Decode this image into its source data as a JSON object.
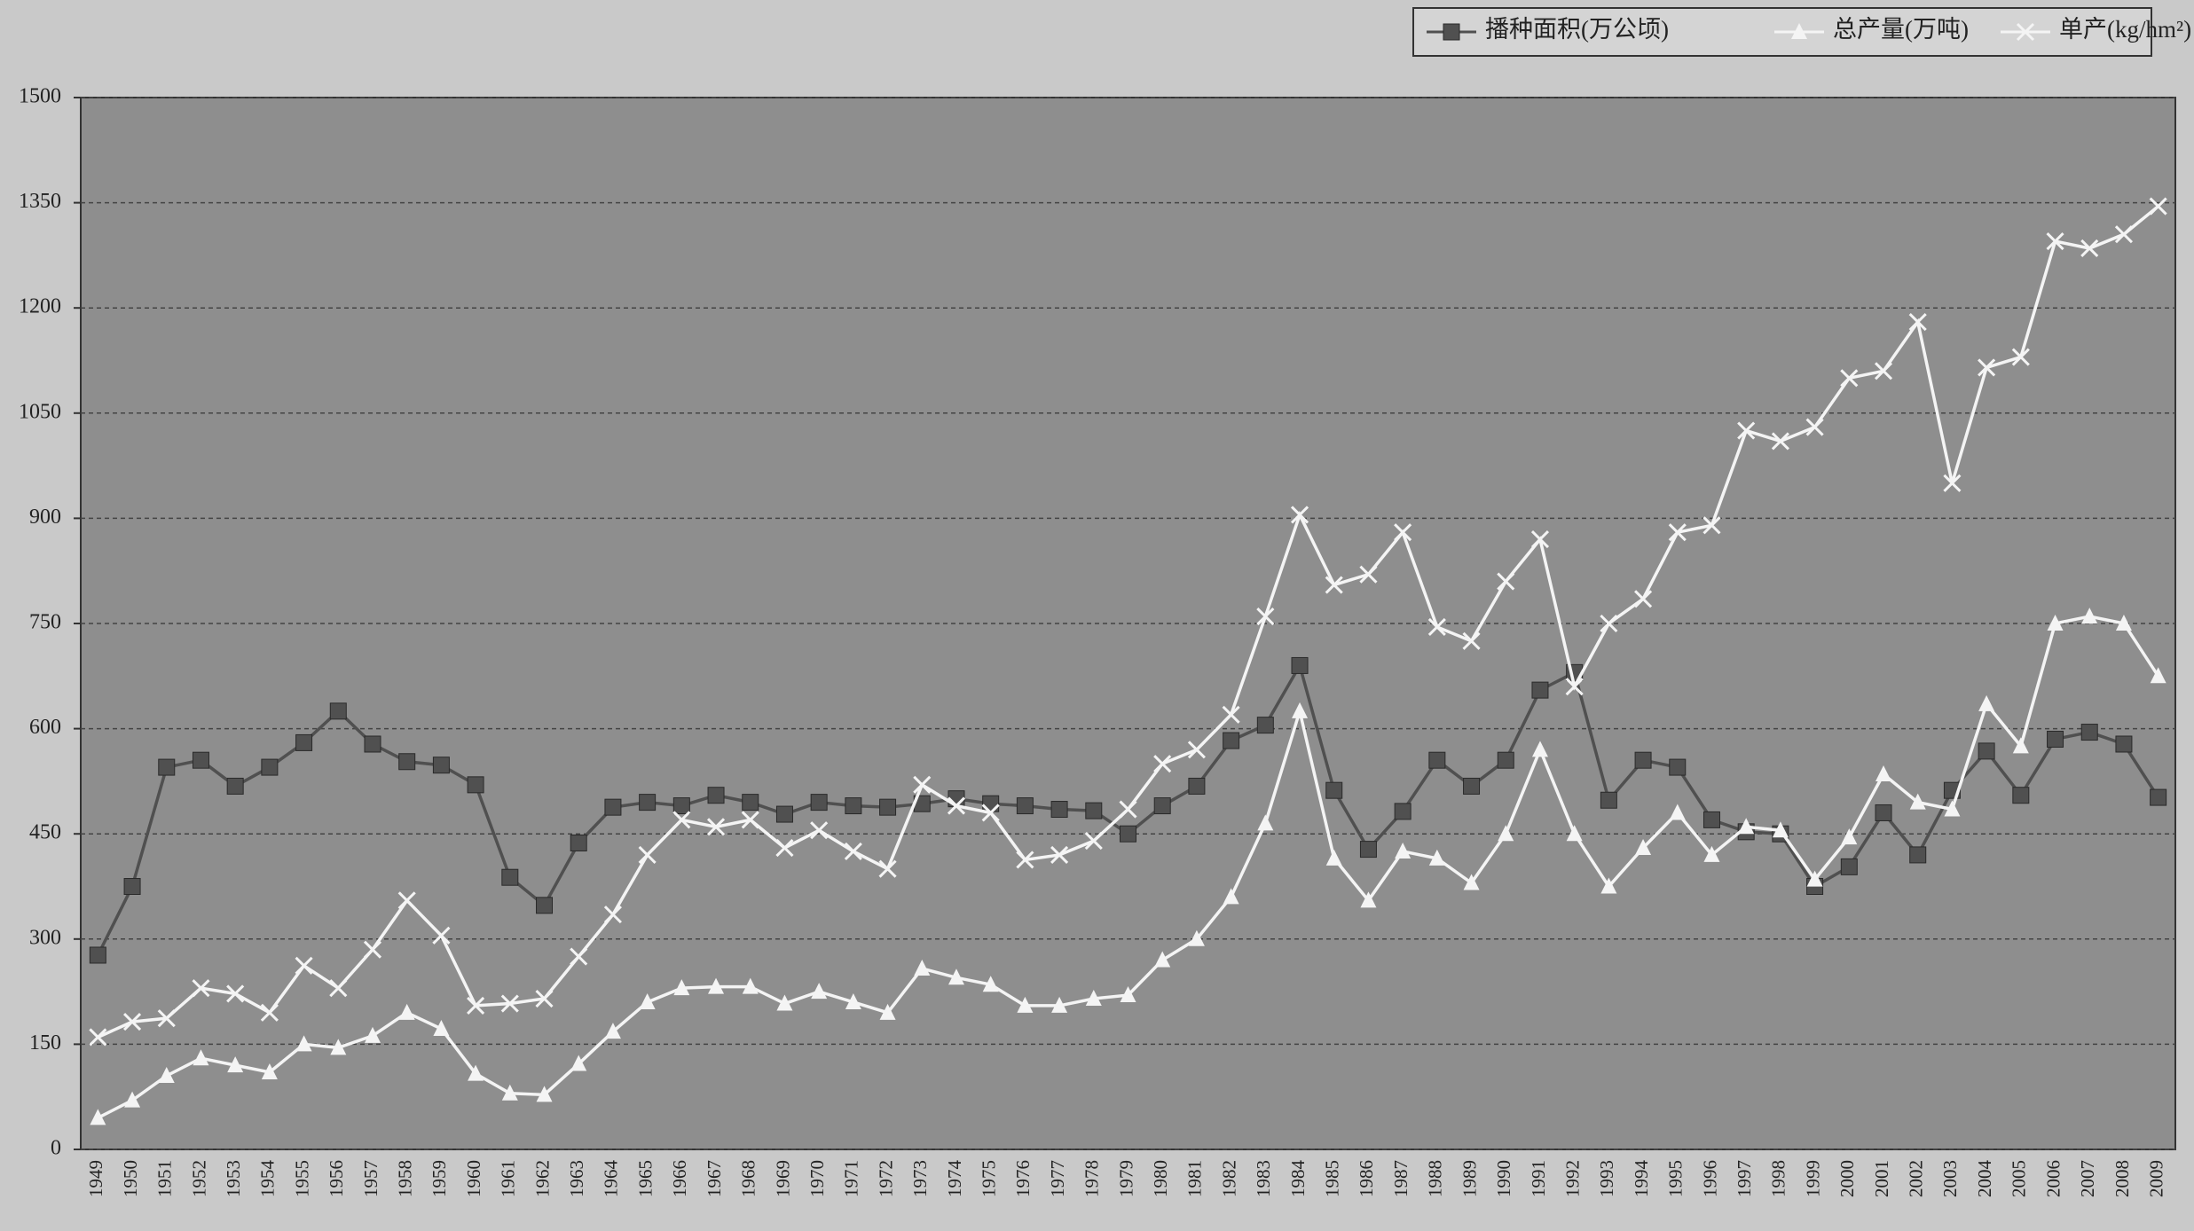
{
  "chart_data": {
    "type": "line",
    "categories": [
      "1949",
      "1950",
      "1951",
      "1952",
      "1953",
      "1954",
      "1955",
      "1956",
      "1957",
      "1958",
      "1959",
      "1960",
      "1961",
      "1962",
      "1963",
      "1964",
      "1965",
      "1966",
      "1967",
      "1968",
      "1969",
      "1970",
      "1971",
      "1972",
      "1973",
      "1974",
      "1975",
      "1976",
      "1977",
      "1978",
      "1979",
      "1980",
      "1981",
      "1982",
      "1983",
      "1984",
      "1985",
      "1986",
      "1987",
      "1988",
      "1989",
      "1990",
      "1991",
      "1992",
      "1993",
      "1994",
      "1995",
      "1996",
      "1997",
      "1998",
      "1999",
      "2000",
      "2001",
      "2002",
      "2003",
      "2004",
      "2005",
      "2006",
      "2007",
      "2008",
      "2009"
    ],
    "series": [
      {
        "name": "播种面积(万公顷)",
        "color": "#505050",
        "marker": "square",
        "values": [
          277,
          375,
          545,
          555,
          518,
          545,
          580,
          625,
          578,
          553,
          548,
          520,
          388,
          348,
          437,
          488,
          495,
          490,
          505,
          495,
          478,
          495,
          490,
          488,
          493,
          500,
          493,
          490,
          485,
          483,
          450,
          490,
          518,
          583,
          605,
          690,
          512,
          428,
          482,
          555,
          518,
          555,
          655,
          680,
          498,
          555,
          545,
          470,
          453,
          450,
          375,
          403,
          480,
          420,
          512,
          568,
          505,
          585,
          595,
          578,
          502
        ]
      },
      {
        "name": "总产量(万吨)",
        "color": "#f4f4f4",
        "marker": "triangle",
        "values": [
          45,
          70,
          105,
          130,
          120,
          110,
          150,
          145,
          162,
          195,
          172,
          108,
          80,
          78,
          122,
          168,
          210,
          230,
          232,
          232,
          208,
          225,
          210,
          195,
          258,
          245,
          235,
          205,
          205,
          215,
          220,
          270,
          300,
          360,
          465,
          625,
          415,
          355,
          425,
          415,
          380,
          450,
          570,
          450,
          375,
          430,
          480,
          420,
          460,
          455,
          385,
          445,
          535,
          495,
          485,
          635,
          575,
          750,
          760,
          750,
          675
        ]
      },
      {
        "name": "单产(kg/hm²)",
        "color": "#f4f4f4",
        "marker": "x",
        "values": [
          160,
          182,
          187,
          230,
          222,
          195,
          262,
          230,
          285,
          355,
          305,
          205,
          208,
          215,
          275,
          335,
          420,
          470,
          460,
          470,
          430,
          455,
          425,
          400,
          520,
          490,
          480,
          413,
          420,
          440,
          485,
          550,
          570,
          620,
          760,
          905,
          805,
          820,
          880,
          745,
          725,
          810,
          870,
          660,
          750,
          785,
          880,
          890,
          1025,
          1010,
          1030,
          1100,
          1110,
          1180,
          950,
          1115,
          1130,
          1295,
          1285,
          1305,
          1345
        ]
      }
    ],
    "ylim": [
      0,
      1500
    ],
    "yticks": [
      0,
      150,
      300,
      450,
      600,
      750,
      900,
      1050,
      1200,
      1350,
      1500
    ],
    "grid": true,
    "legend": "top-right"
  }
}
